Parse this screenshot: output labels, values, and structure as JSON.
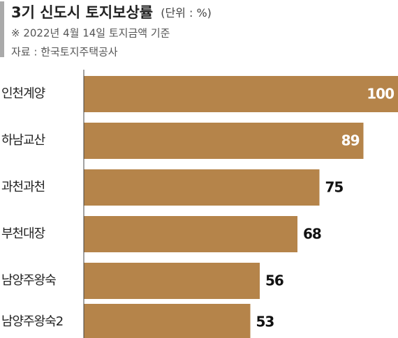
{
  "chart_data": {
    "type": "bar",
    "orientation": "horizontal",
    "title": "3기 신도시 토지보상률",
    "subtitle": "(단위 : %)",
    "notes": [
      "※ 2022년 4월 14일 토지금액 기준",
      "자료 : 한국토지주택공사"
    ],
    "categories": [
      "인천계양",
      "하남교산",
      "과천과천",
      "부천대장",
      "남양주왕숙",
      "남양주왕숙2"
    ],
    "values": [
      100,
      89,
      75,
      68,
      56,
      53
    ],
    "color": "#b5844a",
    "xlim": [
      0,
      100
    ]
  }
}
